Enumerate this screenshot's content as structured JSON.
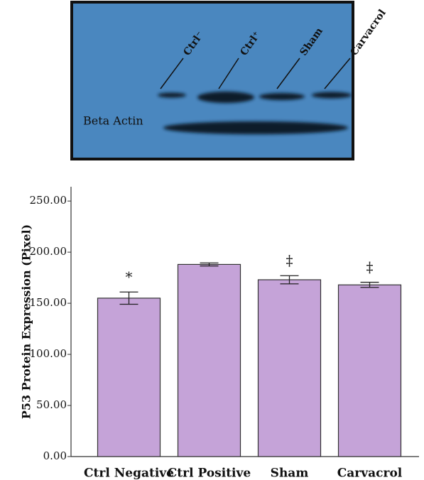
{
  "blot": {
    "lanes": [
      "Ctrl⁻",
      "Ctrl⁺",
      "Sham",
      "Carvacrol"
    ],
    "row_label": "Beta Actin"
  },
  "chart_data": {
    "type": "bar",
    "ylabel": "P53 Protein Expression (Pixel)",
    "categories": [
      "Ctrl Negative",
      "Ctrl Positive",
      "Sham",
      "Carvacrol"
    ],
    "values": [
      155,
      188,
      173,
      168
    ],
    "errors": [
      6,
      1.5,
      4,
      2.5
    ],
    "annotations": [
      "*",
      null,
      "‡",
      "‡"
    ],
    "color": "#c5a3d8",
    "ylim": [
      0,
      264
    ],
    "yticks": [
      {
        "value": 0,
        "label": "0.00"
      },
      {
        "value": 50,
        "label": "50.00"
      },
      {
        "value": 100,
        "label": "100.00"
      },
      {
        "value": 150,
        "label": "150.00"
      },
      {
        "value": 200,
        "label": "200.00"
      },
      {
        "value": 250,
        "label": "250.00"
      }
    ]
  }
}
